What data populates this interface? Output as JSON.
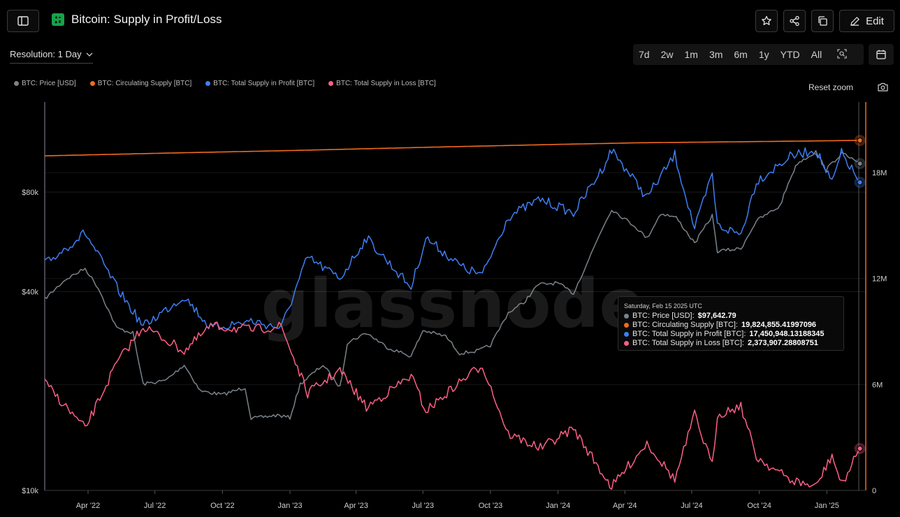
{
  "header": {
    "title": "Bitcoin: Supply in Profit/Loss",
    "edit_label": "Edit"
  },
  "toolbar": {
    "resolution_label": "Resolution: 1 Day",
    "ranges": [
      "7d",
      "2w",
      "1m",
      "3m",
      "6m",
      "1y",
      "YTD",
      "All"
    ],
    "reset_zoom": "Reset zoom"
  },
  "legend": [
    {
      "label": "BTC: Price [USD]",
      "color": "#7a838a"
    },
    {
      "label": "BTC: Circulating Supply [BTC]",
      "color": "#f06a20"
    },
    {
      "label": "BTC: Total Supply in Profit [BTC]",
      "color": "#3f7ef2"
    },
    {
      "label": "BTC: Total Supply in Loss [BTC]",
      "color": "#ff5f85"
    }
  ],
  "tooltip": {
    "date": "Saturday, Feb 15 2025 UTC",
    "rows": [
      {
        "label": "BTC: Price [USD]: ",
        "value": "$97,642.79",
        "color": "#7a838a"
      },
      {
        "label": "BTC: Circulating Supply [BTC]: ",
        "value": "19,824,855.41997096",
        "color": "#f06a20"
      },
      {
        "label": "BTC: Total Supply in Profit [BTC]: ",
        "value": "17,450,948.13188345",
        "color": "#3f7ef2"
      },
      {
        "label": "BTC: Total Supply in Loss [BTC]: ",
        "value": "2,373,907.28808751",
        "color": "#ff5f85"
      }
    ]
  },
  "chart_data": {
    "type": "line",
    "title": "Bitcoin: Supply in Profit/Loss",
    "watermark": "glassnode",
    "x_range": [
      "2022-02-01",
      "2025-02-23"
    ],
    "x_ticks": [
      {
        "label": "Apr '22",
        "date": "2022-04-01"
      },
      {
        "label": "Jul '22",
        "date": "2022-07-01"
      },
      {
        "label": "Oct '22",
        "date": "2022-10-01"
      },
      {
        "label": "Jan '23",
        "date": "2023-01-01"
      },
      {
        "label": "Apr '23",
        "date": "2023-04-01"
      },
      {
        "label": "Jul '23",
        "date": "2023-07-01"
      },
      {
        "label": "Oct '23",
        "date": "2023-10-01"
      },
      {
        "label": "Jan '24",
        "date": "2024-01-01"
      },
      {
        "label": "Apr '24",
        "date": "2024-04-01"
      },
      {
        "label": "Jul '24",
        "date": "2024-07-01"
      },
      {
        "label": "Oct '24",
        "date": "2024-10-01"
      },
      {
        "label": "Jan '25",
        "date": "2025-01-01"
      }
    ],
    "y_left": {
      "scale": "log",
      "range": [
        10000,
        150000
      ],
      "ticks": [
        {
          "label": "$10k",
          "value": 10000
        },
        {
          "label": "$40k",
          "value": 40000
        },
        {
          "label": "$80k",
          "value": 80000
        }
      ]
    },
    "y_right": {
      "scale": "linear",
      "range": [
        0,
        22000000
      ],
      "ticks": [
        {
          "label": "0",
          "value": 0
        },
        {
          "label": "6M",
          "value": 6000000
        },
        {
          "label": "12M",
          "value": 12000000
        },
        {
          "label": "18M",
          "value": 18000000
        }
      ]
    },
    "series": [
      {
        "name": "BTC: Price [USD]",
        "axis": "left",
        "color": "#7a838a",
        "points": [
          [
            "2022-02-01",
            38000
          ],
          [
            "2022-03-01",
            43500
          ],
          [
            "2022-03-28",
            47000
          ],
          [
            "2022-04-15",
            41000
          ],
          [
            "2022-05-10",
            31000
          ],
          [
            "2022-06-01",
            30000
          ],
          [
            "2022-06-15",
            21000
          ],
          [
            "2022-07-15",
            21500
          ],
          [
            "2022-08-10",
            24000
          ],
          [
            "2022-09-01",
            20000
          ],
          [
            "2022-10-01",
            19500
          ],
          [
            "2022-11-01",
            20500
          ],
          [
            "2022-11-09",
            16500
          ],
          [
            "2022-12-15",
            16900
          ],
          [
            "2023-01-01",
            16600
          ],
          [
            "2023-01-15",
            21000
          ],
          [
            "2023-02-15",
            24000
          ],
          [
            "2023-03-10",
            20500
          ],
          [
            "2023-03-20",
            28000
          ],
          [
            "2023-04-15",
            30000
          ],
          [
            "2023-05-15",
            27000
          ],
          [
            "2023-06-15",
            25500
          ],
          [
            "2023-07-01",
            30500
          ],
          [
            "2023-08-01",
            29300
          ],
          [
            "2023-08-20",
            26000
          ],
          [
            "2023-09-15",
            26500
          ],
          [
            "2023-10-01",
            27500
          ],
          [
            "2023-10-25",
            34500
          ],
          [
            "2023-11-15",
            37000
          ],
          [
            "2023-12-05",
            42000
          ],
          [
            "2023-12-31",
            42500
          ],
          [
            "2024-01-22",
            39500
          ],
          [
            "2024-02-15",
            52000
          ],
          [
            "2024-03-01",
            62000
          ],
          [
            "2024-03-14",
            71000
          ],
          [
            "2024-04-15",
            63000
          ],
          [
            "2024-05-01",
            58000
          ],
          [
            "2024-05-20",
            69000
          ],
          [
            "2024-06-10",
            67000
          ],
          [
            "2024-07-05",
            56000
          ],
          [
            "2024-07-29",
            68000
          ],
          [
            "2024-08-05",
            53000
          ],
          [
            "2024-09-06",
            54000
          ],
          [
            "2024-09-27",
            65500
          ],
          [
            "2024-10-29",
            72500
          ],
          [
            "2024-11-12",
            88000
          ],
          [
            "2024-11-22",
            98000
          ],
          [
            "2024-12-17",
            106000
          ],
          [
            "2024-12-31",
            93500
          ],
          [
            "2025-01-21",
            105000
          ],
          [
            "2025-02-15",
            97642
          ]
        ]
      },
      {
        "name": "BTC: Circulating Supply [BTC]",
        "axis": "right",
        "color": "#f06a20",
        "points": [
          [
            "2022-02-01",
            18950000
          ],
          [
            "2022-08-01",
            19120000
          ],
          [
            "2023-01-01",
            19250000
          ],
          [
            "2023-07-01",
            19430000
          ],
          [
            "2024-01-01",
            19600000
          ],
          [
            "2024-04-20",
            19690000
          ],
          [
            "2024-10-01",
            19760000
          ],
          [
            "2025-02-15",
            19824855
          ]
        ]
      },
      {
        "name": "BTC: Total Supply in Profit [BTC]",
        "axis": "right",
        "color": "#3f7ef2",
        "points": [
          [
            "2022-02-01",
            12800000
          ],
          [
            "2022-03-28",
            14600000
          ],
          [
            "2022-05-10",
            11500000
          ],
          [
            "2022-06-15",
            9300000
          ],
          [
            "2022-08-10",
            11000000
          ],
          [
            "2022-09-15",
            9200000
          ],
          [
            "2022-11-09",
            9600000
          ],
          [
            "2022-12-20",
            9200000
          ],
          [
            "2023-01-25",
            13200000
          ],
          [
            "2023-03-10",
            12000000
          ],
          [
            "2023-04-15",
            14300000
          ],
          [
            "2023-06-15",
            11500000
          ],
          [
            "2023-07-05",
            14300000
          ],
          [
            "2023-08-25",
            12600000
          ],
          [
            "2023-09-20",
            12200000
          ],
          [
            "2023-10-25",
            15500000
          ],
          [
            "2023-12-08",
            16500000
          ],
          [
            "2024-01-22",
            15700000
          ],
          [
            "2024-03-01",
            18200000
          ],
          [
            "2024-03-14",
            19300000
          ],
          [
            "2024-05-01",
            16600000
          ],
          [
            "2024-06-08",
            19000000
          ],
          [
            "2024-07-05",
            14800000
          ],
          [
            "2024-07-29",
            17900000
          ],
          [
            "2024-08-05",
            15000000
          ],
          [
            "2024-09-06",
            14500000
          ],
          [
            "2024-09-27",
            17500000
          ],
          [
            "2024-11-12",
            18900000
          ],
          [
            "2024-12-17",
            19300000
          ],
          [
            "2025-01-08",
            17400000
          ],
          [
            "2025-01-21",
            19100000
          ],
          [
            "2025-02-15",
            17450948
          ]
        ]
      },
      {
        "name": "BTC: Total Supply in Loss [BTC]",
        "axis": "right",
        "color": "#ff5f85",
        "points": [
          [
            "2022-02-01",
            6100000
          ],
          [
            "2022-03-28",
            3500000
          ],
          [
            "2022-05-10",
            7200000
          ],
          [
            "2022-06-15",
            9300000
          ],
          [
            "2022-08-10",
            7900000
          ],
          [
            "2022-09-15",
            9300000
          ],
          [
            "2022-11-09",
            9100000
          ],
          [
            "2022-12-20",
            9300000
          ],
          [
            "2023-01-25",
            5500000
          ],
          [
            "2023-03-10",
            6800000
          ],
          [
            "2023-04-15",
            4700000
          ],
          [
            "2023-06-15",
            6500000
          ],
          [
            "2023-07-05",
            4500000
          ],
          [
            "2023-08-25",
            6300000
          ],
          [
            "2023-09-20",
            7100000
          ],
          [
            "2023-10-25",
            3200000
          ],
          [
            "2023-12-08",
            2400000
          ],
          [
            "2024-01-22",
            3500000
          ],
          [
            "2024-03-01",
            1000000
          ],
          [
            "2024-03-14",
            200000
          ],
          [
            "2024-05-01",
            2700000
          ],
          [
            "2024-06-08",
            600000
          ],
          [
            "2024-07-05",
            4300000
          ],
          [
            "2024-07-29",
            1400000
          ],
          [
            "2024-08-05",
            4300000
          ],
          [
            "2024-09-06",
            4800000
          ],
          [
            "2024-09-27",
            1900000
          ],
          [
            "2024-11-12",
            600000
          ],
          [
            "2024-12-17",
            200000
          ],
          [
            "2025-01-08",
            2000000
          ],
          [
            "2025-01-21",
            300000
          ],
          [
            "2025-02-15",
            2373907
          ]
        ]
      }
    ]
  }
}
